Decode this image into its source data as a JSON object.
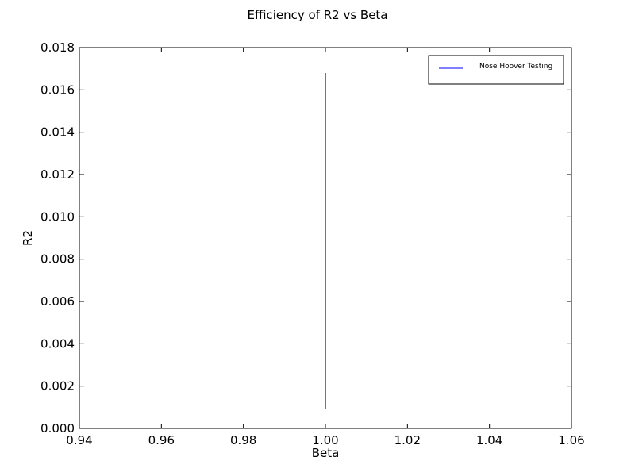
{
  "chart_data": {
    "type": "line",
    "title": "Efficiency of R2 vs Beta",
    "xlabel": "Beta",
    "ylabel": "R2",
    "xlim": [
      0.94,
      1.06
    ],
    "ylim": [
      0.0,
      0.018
    ],
    "xticks": [
      "0.94",
      "0.96",
      "0.98",
      "1.00",
      "1.02",
      "1.04",
      "1.06"
    ],
    "yticks": [
      "0.000",
      "0.002",
      "0.004",
      "0.006",
      "0.008",
      "0.010",
      "0.012",
      "0.014",
      "0.016",
      "0.018"
    ],
    "grid": false,
    "legend_placement": "top-right",
    "series": [
      {
        "name": "Nose Hoover Testing",
        "color": "#0000ff",
        "x": [
          1.0,
          1.0,
          1.0,
          1.0,
          1.0,
          1.0,
          1.0,
          1.0,
          1.0,
          1.0,
          1.0,
          1.0
        ],
        "y": [
          0.0009,
          0.0168,
          0.0015,
          0.0117,
          0.0022,
          0.0094,
          0.0018,
          0.0073,
          0.0026,
          0.006,
          0.0021,
          0.0045
        ]
      }
    ]
  }
}
